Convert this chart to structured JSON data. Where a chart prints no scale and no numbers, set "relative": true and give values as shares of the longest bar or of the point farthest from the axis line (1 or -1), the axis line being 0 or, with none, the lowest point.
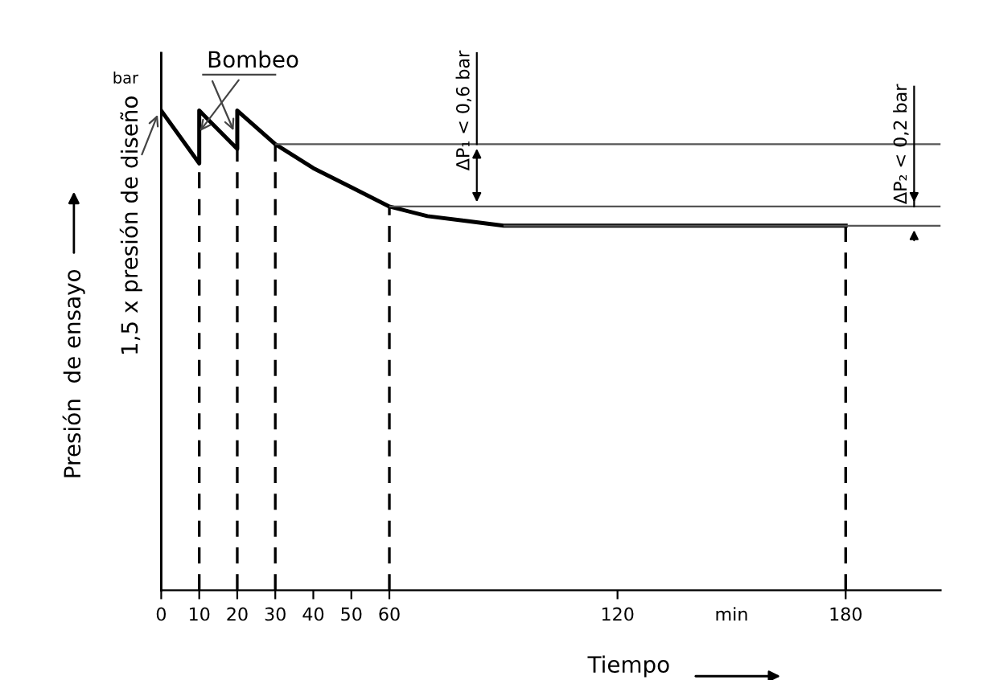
{
  "chart_data": {
    "type": "line",
    "relative": true,
    "xlabel": "Tiempo",
    "ylabel": "Presión  de ensayo",
    "x": [
      0,
      10,
      10,
      20,
      20,
      30,
      40,
      50,
      60,
      70,
      80,
      90,
      180
    ],
    "series": [
      {
        "color": "#000000",
        "values": [
          1,
          0.89,
          1,
          0.92,
          1,
          0.93,
          0.88,
          0.84,
          0.8,
          0.78,
          0.77,
          0.76,
          0.76
        ]
      }
    ],
    "xlim": [
      0,
      205
    ],
    "xticks": [
      0,
      10,
      20,
      30,
      40,
      50,
      60,
      120,
      180
    ],
    "ref_lines": [
      {
        "axis": "x",
        "value": 10,
        "line_style": "dashed",
        "color": "#000000"
      },
      {
        "axis": "x",
        "value": 20,
        "line_style": "dashed",
        "color": "#000000"
      },
      {
        "axis": "x",
        "value": 30,
        "line_style": "dashed",
        "color": "#000000"
      },
      {
        "axis": "x",
        "value": 60,
        "line_style": "dashed",
        "color": "#000000"
      },
      {
        "axis": "x",
        "value": 180,
        "line_style": "dashed",
        "color": "#000000"
      },
      {
        "axis": "y",
        "value": 0.93,
        "line_style": "solid",
        "color": "#555555"
      },
      {
        "axis": "y",
        "value": 0.8,
        "line_style": "solid",
        "color": "#555555"
      },
      {
        "axis": "y",
        "value": 0.76,
        "line_style": "solid",
        "color": "#555555"
      }
    ],
    "annotations": [
      {
        "text": "Bombeo",
        "x": 10,
        "y": 1
      },
      {
        "text": "bar",
        "x": 0,
        "y": 1
      },
      "1,5 x presión de diseño",
      {
        "text": "ΔP₁ < 0,6 bar",
        "x": 83,
        "y": 0.8
      },
      {
        "text": "ΔP₂ < 0,2 bar",
        "x": 198,
        "y": 0.76
      },
      "min"
    ],
    "grid": false,
    "legend": false,
    "marker": "none",
    "line_style": "solid"
  }
}
